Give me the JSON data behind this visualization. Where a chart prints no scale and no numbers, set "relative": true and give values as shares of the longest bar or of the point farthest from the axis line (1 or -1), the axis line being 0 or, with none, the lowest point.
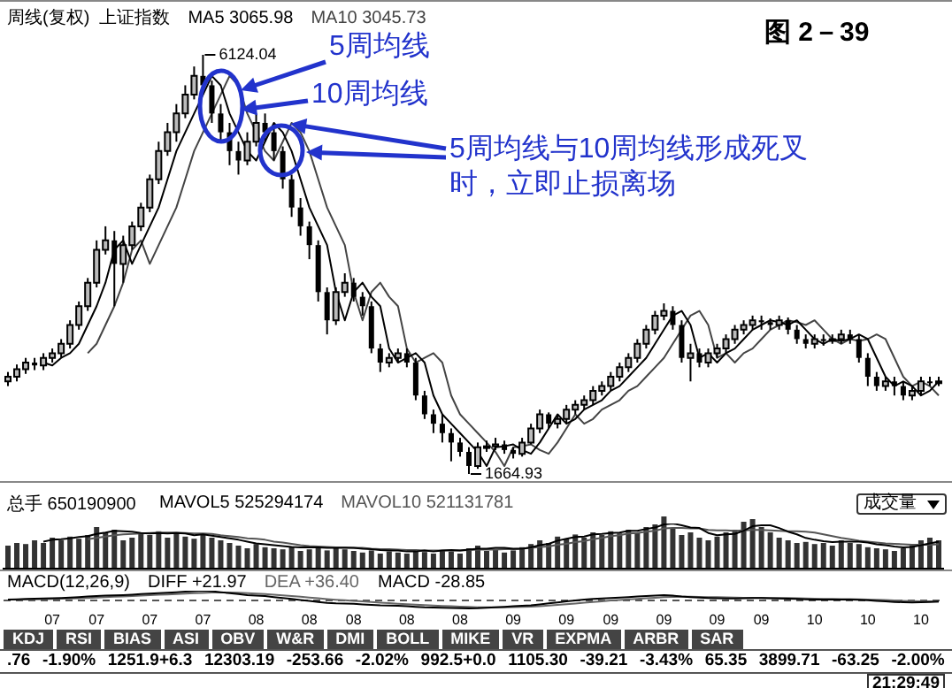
{
  "chart_data": [
    {
      "type": "candlestick",
      "title": "周线(复权)  上证指数",
      "tick_labels": false,
      "categories": [
        null,
        null,
        null,
        null,
        null,
        "07",
        null,
        null,
        null,
        null,
        "07",
        null,
        null,
        null,
        null,
        null,
        "07",
        null,
        null,
        null,
        null,
        null,
        "07",
        null,
        null,
        null,
        null,
        null,
        "08",
        null,
        null,
        null,
        null,
        null,
        "08",
        null,
        null,
        null,
        null,
        "08",
        null,
        null,
        null,
        null,
        null,
        "08",
        null,
        null,
        null,
        null,
        null,
        "08",
        null,
        null,
        null,
        null,
        null,
        "09",
        null,
        null,
        null,
        null,
        null,
        "09",
        null,
        null,
        null,
        null,
        "09",
        null,
        null,
        null,
        null,
        null,
        "09",
        null,
        null,
        null,
        null,
        null,
        "09",
        null,
        null,
        null,
        null,
        "09",
        null,
        null,
        null,
        null,
        null,
        "10",
        null,
        null,
        null,
        null,
        null,
        "10",
        null,
        null,
        null,
        null,
        null,
        "10",
        null,
        null
      ],
      "ohlc": [
        [
          2650,
          2750,
          2600,
          2700
        ],
        [
          2700,
          2830,
          2650,
          2780
        ],
        [
          2780,
          2900,
          2730,
          2850
        ],
        [
          2850,
          2900,
          2770,
          2820
        ],
        [
          2820,
          2950,
          2770,
          2900
        ],
        [
          2900,
          3000,
          2850,
          2950
        ],
        [
          2950,
          3100,
          2900,
          3050
        ],
        [
          3050,
          3300,
          3000,
          3250
        ],
        [
          3250,
          3500,
          3200,
          3450
        ],
        [
          3450,
          3750,
          3400,
          3700
        ],
        [
          3700,
          4150,
          3650,
          4050
        ],
        [
          4050,
          4300,
          4000,
          4150
        ],
        [
          4150,
          4250,
          3450,
          3900
        ],
        [
          3900,
          4200,
          3700,
          4100
        ],
        [
          4100,
          4350,
          4050,
          4300
        ],
        [
          4300,
          4550,
          4250,
          4500
        ],
        [
          4500,
          4850,
          4450,
          4800
        ],
        [
          4800,
          5200,
          4750,
          5100
        ],
        [
          5100,
          5400,
          5050,
          5300
        ],
        [
          5300,
          5600,
          5200,
          5500
        ],
        [
          5500,
          5800,
          5450,
          5700
        ],
        [
          5700,
          6000,
          5650,
          5900
        ],
        [
          5900,
          6124.04,
          5700,
          5800
        ],
        [
          5800,
          5850,
          5400,
          5500
        ],
        [
          5500,
          5600,
          5200,
          5300
        ],
        [
          5300,
          5400,
          4950,
          5100
        ],
        [
          5100,
          5200,
          4850,
          5000
        ],
        [
          5000,
          5300,
          4950,
          5200
        ],
        [
          5200,
          5500,
          5150,
          5400
        ],
        [
          5400,
          5500,
          5200,
          5300
        ],
        [
          5300,
          5350,
          5000,
          5100
        ],
        [
          5100,
          5150,
          4700,
          4800
        ],
        [
          4800,
          4850,
          4400,
          4500
        ],
        [
          4500,
          4600,
          4200,
          4300
        ],
        [
          4300,
          4350,
          3950,
          4100
        ],
        [
          4100,
          4150,
          3500,
          3600
        ],
        [
          3600,
          3650,
          3150,
          3300
        ],
        [
          3300,
          3650,
          3250,
          3600
        ],
        [
          3600,
          3800,
          3550,
          3700
        ],
        [
          3700,
          3750,
          3500,
          3550
        ],
        [
          3550,
          3600,
          3350,
          3450
        ],
        [
          3450,
          3500,
          2950,
          3000
        ],
        [
          3000,
          3050,
          2750,
          2850
        ],
        [
          2850,
          2950,
          2800,
          2900
        ],
        [
          2900,
          3000,
          2850,
          2950
        ],
        [
          2950,
          3000,
          2800,
          2850
        ],
        [
          2850,
          2900,
          2450,
          2500
        ],
        [
          2500,
          2550,
          2250,
          2300
        ],
        [
          2300,
          2350,
          2100,
          2200
        ],
        [
          2200,
          2300,
          2000,
          2100
        ],
        [
          2100,
          2150,
          1800,
          2000
        ],
        [
          2000,
          2050,
          1850,
          1900
        ],
        [
          1900,
          1950,
          1664.93,
          1750
        ],
        [
          1750,
          2000,
          1720,
          1950
        ],
        [
          1950,
          2020,
          1900,
          1960
        ],
        [
          1960,
          2050,
          1920,
          1980
        ],
        [
          1980,
          2020,
          1880,
          1920
        ],
        [
          1920,
          1950,
          1830,
          1880
        ],
        [
          1880,
          2050,
          1850,
          2000
        ],
        [
          2000,
          2200,
          1980,
          2150
        ],
        [
          2150,
          2350,
          2100,
          2300
        ],
        [
          2300,
          2320,
          2150,
          2200
        ],
        [
          2200,
          2300,
          2150,
          2250
        ],
        [
          2250,
          2400,
          2200,
          2350
        ],
        [
          2350,
          2450,
          2300,
          2400
        ],
        [
          2400,
          2500,
          2350,
          2450
        ],
        [
          2450,
          2600,
          2400,
          2550
        ],
        [
          2550,
          2650,
          2500,
          2600
        ],
        [
          2600,
          2750,
          2550,
          2700
        ],
        [
          2700,
          2850,
          2650,
          2800
        ],
        [
          2800,
          2950,
          2750,
          2900
        ],
        [
          2900,
          3100,
          2850,
          3050
        ],
        [
          3050,
          3250,
          3000,
          3200
        ],
        [
          3200,
          3400,
          3150,
          3350
        ],
        [
          3350,
          3480,
          3300,
          3400
        ],
        [
          3400,
          3450,
          3200,
          3250
        ],
        [
          3250,
          3300,
          2850,
          2900
        ],
        [
          2900,
          3050,
          2650,
          2950
        ],
        [
          2950,
          3000,
          2800,
          2850
        ],
        [
          2850,
          3000,
          2800,
          2950
        ],
        [
          2950,
          3050,
          2900,
          3000
        ],
        [
          3000,
          3150,
          2950,
          3100
        ],
        [
          3100,
          3250,
          3050,
          3200
        ],
        [
          3200,
          3300,
          3150,
          3250
        ],
        [
          3250,
          3350,
          3200,
          3300
        ],
        [
          3300,
          3350,
          3200,
          3280
        ],
        [
          3280,
          3320,
          3200,
          3250
        ],
        [
          3250,
          3350,
          3200,
          3300
        ],
        [
          3300,
          3330,
          3150,
          3200
        ],
        [
          3200,
          3250,
          3050,
          3100
        ],
        [
          3100,
          3150,
          3000,
          3050
        ],
        [
          3050,
          3150,
          3000,
          3100
        ],
        [
          3100,
          3150,
          3030,
          3080
        ],
        [
          3080,
          3150,
          3050,
          3100
        ],
        [
          3100,
          3200,
          3050,
          3150
        ],
        [
          3150,
          3200,
          3050,
          3100
        ],
        [
          3100,
          3150,
          2850,
          2900
        ],
        [
          2900,
          2950,
          2600,
          2700
        ],
        [
          2700,
          2750,
          2550,
          2600
        ],
        [
          2600,
          2700,
          2550,
          2650
        ],
        [
          2650,
          2700,
          2500,
          2600
        ],
        [
          2600,
          2650,
          2450,
          2500
        ],
        [
          2500,
          2600,
          2450,
          2550
        ],
        [
          2550,
          2700,
          2500,
          2650
        ],
        [
          2650,
          2700,
          2600,
          2640
        ],
        [
          2640,
          2700,
          2600,
          2650
        ]
      ],
      "series": [
        {
          "name": "MA5 3065.98",
          "type": "line",
          "color": "#000000",
          "values": [
            null,
            null,
            null,
            null,
            2850,
            2820,
            2900,
            2950,
            3050,
            3250,
            3450,
            3700,
            4050,
            4150,
            3900,
            4100,
            4300,
            4500,
            4800,
            5100,
            5300,
            5500,
            5700,
            5900,
            5800,
            5500,
            5300,
            5100,
            5000,
            5200,
            5400,
            5300,
            5100,
            4800,
            4500,
            4300,
            4100,
            3600,
            3300,
            3600,
            3700,
            3550,
            3450,
            3000,
            2850,
            2900,
            2950,
            2850,
            2500,
            2300,
            2200,
            2100,
            2000,
            1900,
            1750,
            1950,
            1960,
            1980,
            1920,
            1880,
            2000,
            2150,
            2300,
            2200,
            2250,
            2350,
            2400,
            2450,
            2550,
            2600,
            2700,
            2800,
            2900,
            3050,
            3200,
            3350,
            3400,
            3250,
            2900,
            2950,
            2850,
            2950,
            3000,
            3100,
            3200,
            3250,
            3300,
            3280,
            3250,
            3300,
            3200,
            3100,
            3050,
            3100,
            3080,
            3100,
            3150,
            3100,
            2900,
            2700,
            2600,
            2650,
            2600,
            2500,
            2550,
            2650
          ]
        },
        {
          "name": "MA10 3045.73",
          "type": "line",
          "color": "#444444",
          "values": [
            null,
            null,
            null,
            null,
            null,
            null,
            null,
            null,
            null,
            2950,
            3050,
            3250,
            3450,
            3700,
            4050,
            4150,
            3900,
            4100,
            4300,
            4500,
            4800,
            5100,
            5300,
            5500,
            5700,
            5900,
            5800,
            5500,
            5300,
            5100,
            5000,
            5200,
            5400,
            5300,
            5100,
            4800,
            4500,
            4300,
            4100,
            3600,
            3300,
            3600,
            3700,
            3550,
            3450,
            3000,
            2850,
            2900,
            2950,
            2850,
            2500,
            2300,
            2200,
            2100,
            2000,
            1900,
            1750,
            1950,
            1960,
            1980,
            1920,
            1880,
            2000,
            2150,
            2300,
            2200,
            2250,
            2350,
            2400,
            2450,
            2550,
            2600,
            2700,
            2800,
            2900,
            3050,
            3200,
            3350,
            3400,
            3250,
            2900,
            2950,
            2850,
            2950,
            3000,
            3100,
            3200,
            3250,
            3300,
            3280,
            3250,
            3300,
            3200,
            3100,
            3050,
            3100,
            3080,
            3100,
            3150,
            3100,
            2900,
            2700,
            2600,
            2650,
            2600,
            2500
          ]
        }
      ],
      "annotations": [
        "图 2－39",
        "6124.04",
        "1664.93",
        "5周均线",
        "10周均线",
        "5周均线与10周均线形成死叉时，立即止损离场"
      ]
    },
    {
      "type": "bar",
      "title": "总手 650190900",
      "relative": true,
      "tick_labels": false,
      "categories": [
        null,
        null,
        null,
        null,
        null,
        "07",
        null,
        null,
        null,
        null,
        "07",
        null,
        null,
        null,
        null,
        null,
        "07",
        null,
        null,
        null,
        null,
        null,
        "07",
        null,
        null,
        null,
        null,
        null,
        "08",
        null,
        null,
        null,
        null,
        null,
        "08",
        null,
        null,
        null,
        null,
        "08",
        null,
        null,
        null,
        null,
        null,
        "08",
        null,
        null,
        null,
        null,
        null,
        "08",
        null,
        null,
        null,
        null,
        null,
        "09",
        null,
        null,
        null,
        null,
        null,
        "09",
        null,
        null,
        null,
        null,
        "09",
        null,
        null,
        null,
        null,
        null,
        "09",
        null,
        null,
        null,
        null,
        null,
        "09",
        null,
        null,
        null,
        null,
        "09",
        null,
        null,
        null,
        null,
        null,
        "10",
        null,
        null,
        null,
        null,
        null,
        "10",
        null,
        null,
        null,
        null,
        null,
        "10",
        null,
        null
      ],
      "series": [
        {
          "type": "bar",
          "color": "#333333",
          "values": [
            0.45,
            0.5,
            0.48,
            0.55,
            0.5,
            0.6,
            0.55,
            0.62,
            0.58,
            0.65,
            0.8,
            0.7,
            0.75,
            0.55,
            0.6,
            0.7,
            0.65,
            0.72,
            0.6,
            0.68,
            0.62,
            0.58,
            0.66,
            0.6,
            0.55,
            0.5,
            0.45,
            0.4,
            0.48,
            0.42,
            0.4,
            0.38,
            0.42,
            0.35,
            0.38,
            0.4,
            0.36,
            0.42,
            0.38,
            0.35,
            0.32,
            0.36,
            0.3,
            0.34,
            0.32,
            0.3,
            0.35,
            0.33,
            0.3,
            0.36,
            0.34,
            0.3,
            0.4,
            0.45,
            0.35,
            0.38,
            0.32,
            0.36,
            0.42,
            0.48,
            0.55,
            0.5,
            0.62,
            0.58,
            0.66,
            0.6,
            0.7,
            0.65,
            0.72,
            0.68,
            0.75,
            0.7,
            0.8,
            0.85,
            1,
            0.78,
            0.65,
            0.7,
            0.6,
            0.55,
            0.62,
            0.7,
            0.75,
            0.9,
            0.95,
            0.8,
            0.7,
            0.6,
            0.55,
            0.5,
            0.52,
            0.48,
            0.5,
            0.45,
            0.55,
            0.5,
            0.48,
            0.42,
            0.4,
            0.38,
            0.35,
            0.4,
            0.45,
            0.55,
            0.6,
            0.55
          ]
        }
      ],
      "annotations": [
        "成交量"
      ]
    },
    {
      "type": "line",
      "relative": true,
      "tick_labels": false,
      "categories": [
        null,
        null,
        null,
        null,
        null,
        "07",
        null,
        null,
        null,
        null,
        "07",
        null,
        null,
        null,
        null,
        null,
        "07",
        null,
        null,
        null,
        null,
        null,
        "07",
        null,
        null,
        null,
        null,
        null,
        "08",
        null,
        null,
        null,
        null,
        null,
        "08",
        null,
        null,
        null,
        null,
        "08",
        null,
        null,
        null,
        null,
        null,
        "08",
        null,
        null,
        null,
        null,
        null,
        "08",
        null,
        null,
        null,
        null,
        null,
        "09",
        null,
        null,
        null,
        null,
        null,
        "09",
        null,
        null,
        null,
        null,
        "09",
        null,
        null,
        null,
        null,
        null,
        "09",
        null,
        null,
        null,
        null,
        null,
        "09",
        null,
        null,
        null,
        null,
        "09",
        null,
        null,
        null,
        null,
        null,
        "10",
        null,
        null,
        null,
        null,
        null,
        "10",
        null,
        null,
        null,
        null,
        null,
        "10",
        null,
        null
      ],
      "series": [
        {
          "name": "MAVOL5 525294174",
          "type": "line",
          "color": "#000000",
          "values": [
            null,
            null,
            null,
            null,
            0.6,
            0.64,
            0.65,
            0.67,
            0.7,
            0.72,
            0.77,
            0.8,
            0.84,
            0.83,
            0.82,
            0.79,
            0.78,
            0.79,
            0.78,
            0.79,
            0.78,
            0.74,
            0.76,
            0.73,
            0.7,
            0.67,
            0.64,
            0.6,
            0.56,
            0.54,
            0.52,
            0.5,
            0.48,
            0.47,
            0.47,
            0.47,
            0.46,
            0.46,
            0.46,
            0.46,
            0.44,
            0.43,
            0.41,
            0.4,
            0.4,
            0.38,
            0.38,
            0.4,
            0.38,
            0.4,
            0.41,
            0.4,
            0.42,
            0.44,
            0.44,
            0.46,
            0.46,
            0.44,
            0.44,
            0.47,
            0.52,
            0.55,
            0.62,
            0.66,
            0.7,
            0.71,
            0.76,
            0.77,
            0.79,
            0.8,
            0.84,
            0.84,
            0.88,
            0.91,
            0.98,
            1,
            0.96,
            0.91,
            0.9,
            0.79,
            0.74,
            0.76,
            0.77,
            0.84,
            0.94,
            0.96,
            0.96,
            0.9,
            0.82,
            0.76,
            0.68,
            0.64,
            0.61,
            0.59,
            0.6,
            0.6,
            0.6,
            0.58,
            0.54,
            0.52,
            0.49,
            0.47,
            0.48,
            0.52,
            0.56,
            0.6
          ]
        },
        {
          "name": "MAVOL10 521131781",
          "type": "line",
          "color": "#555555",
          "values": [
            null,
            null,
            null,
            null,
            null,
            null,
            null,
            null,
            null,
            0.65,
            0.68,
            0.71,
            0.74,
            0.76,
            0.77,
            0.78,
            0.79,
            0.8,
            0.8,
            0.8,
            0.79,
            0.78,
            0.78,
            0.77,
            0.74,
            0.72,
            0.7,
            0.67,
            0.66,
            0.64,
            0.6,
            0.58,
            0.55,
            0.52,
            0.5,
            0.49,
            0.48,
            0.47,
            0.47,
            0.46,
            0.46,
            0.44,
            0.43,
            0.43,
            0.42,
            0.41,
            0.41,
            0.4,
            0.4,
            0.4,
            0.4,
            0.4,
            0.41,
            0.42,
            0.42,
            0.42,
            0.43,
            0.43,
            0.44,
            0.46,
            0.48,
            0.49,
            0.53,
            0.55,
            0.59,
            0.61,
            0.65,
            0.68,
            0.72,
            0.74,
            0.78,
            0.79,
            0.82,
            0.84,
            0.89,
            0.9,
            0.9,
            0.89,
            0.89,
            0.86,
            0.85,
            0.85,
            0.84,
            0.85,
            0.86,
            0.86,
            0.85,
            0.84,
            0.83,
            0.83,
            0.82,
            0.8,
            0.76,
            0.72,
            0.68,
            0.65,
            0.62,
            0.6,
            0.58,
            0.56,
            0.55,
            0.54,
            0.53,
            0.53,
            0.53,
            0.54
          ]
        }
      ]
    },
    {
      "type": "line",
      "title": "MACD(12,26,9)",
      "relative": true,
      "tick_labels": "x",
      "categories": [
        null,
        null,
        null,
        null,
        null,
        "07",
        null,
        null,
        null,
        null,
        "07",
        null,
        null,
        null,
        null,
        null,
        "07",
        null,
        null,
        null,
        null,
        null,
        "07",
        null,
        null,
        null,
        null,
        null,
        "08",
        null,
        null,
        null,
        null,
        null,
        "08",
        null,
        null,
        null,
        null,
        "08",
        null,
        null,
        null,
        null,
        null,
        "08",
        null,
        null,
        null,
        null,
        null,
        "08",
        null,
        null,
        null,
        null,
        null,
        "09",
        null,
        null,
        null,
        null,
        null,
        "09",
        null,
        null,
        null,
        null,
        "09",
        null,
        null,
        null,
        null,
        null,
        "09",
        null,
        null,
        null,
        null,
        null,
        "09",
        null,
        null,
        null,
        null,
        "09",
        null,
        null,
        null,
        null,
        null,
        "10",
        null,
        null,
        null,
        null,
        null,
        "10",
        null,
        null,
        null,
        null,
        null,
        "10",
        null,
        null
      ],
      "series": [
        {
          "name": "DIFF +21.97",
          "type": "line",
          "color": "#000000",
          "values": [
            0.1,
            0.12,
            0.15,
            0.18,
            0.2,
            0.22,
            0.25,
            0.3,
            0.35,
            0.4,
            0.45,
            0.5,
            0.52,
            0.55,
            0.6,
            0.65,
            0.7,
            0.75,
            0.8,
            0.85,
            0.9,
            0.95,
            1,
            0.95,
            0.85,
            0.75,
            0.65,
            0.55,
            0.5,
            0.45,
            0.35,
            0.25,
            0.15,
            0.05,
            -0.05,
            -0.15,
            -0.25,
            -0.3,
            -0.32,
            -0.35,
            -0.4,
            -0.45,
            -0.5,
            -0.52,
            -0.55,
            -0.6,
            -0.65,
            -0.7,
            -0.72,
            -0.75,
            -0.78,
            -0.8,
            -0.82,
            -0.8,
            -0.75,
            -0.7,
            -0.65,
            -0.6,
            -0.55,
            -0.5,
            -0.4,
            -0.3,
            -0.2,
            -0.1,
            0,
            0.1,
            0.15,
            0.2,
            0.25,
            0.3,
            0.35,
            0.4,
            0.45,
            0.5,
            0.55,
            0.5,
            0.4,
            0.35,
            0.3,
            0.25,
            0.22,
            0.2,
            0.2,
            0.22,
            0.25,
            0.25,
            0.22,
            0.2,
            0.18,
            0.15,
            0.12,
            0.1,
            0.08,
            0.08,
            0.08,
            0.08,
            0.06,
            0.02,
            -0.05,
            -0.1,
            -0.15,
            -0.18,
            -0.2,
            -0.18,
            -0.15,
            -0.12
          ]
        },
        {
          "name": "DEA +36.40",
          "type": "line",
          "color": "#666666",
          "values": [
            0.08,
            0.09,
            0.1,
            0.12,
            0.14,
            0.16,
            0.18,
            0.2,
            0.23,
            0.26,
            0.3,
            0.34,
            0.38,
            0.42,
            0.46,
            0.5,
            0.54,
            0.58,
            0.62,
            0.66,
            0.7,
            0.74,
            0.78,
            0.81,
            0.82,
            0.81,
            0.79,
            0.75,
            0.7,
            0.65,
            0.6,
            0.53,
            0.46,
            0.38,
            0.3,
            0.22,
            0.14,
            0.07,
            0.02,
            -0.04,
            -0.1,
            -0.16,
            -0.22,
            -0.28,
            -0.33,
            -0.38,
            -0.43,
            -0.48,
            -0.52,
            -0.56,
            -0.6,
            -0.64,
            -0.67,
            -0.7,
            -0.71,
            -0.71,
            -0.7,
            -0.68,
            -0.66,
            -0.63,
            -0.58,
            -0.53,
            -0.46,
            -0.39,
            -0.31,
            -0.23,
            -0.15,
            -0.08,
            -0.01,
            0.05,
            0.11,
            0.17,
            0.22,
            0.28,
            0.33,
            0.37,
            0.38,
            0.38,
            0.37,
            0.35,
            0.33,
            0.31,
            0.29,
            0.28,
            0.27,
            0.27,
            0.26,
            0.25,
            0.24,
            0.22,
            0.2,
            0.18,
            0.16,
            0.15,
            0.14,
            0.13,
            0.12,
            0.1,
            0.07,
            0.04,
            0,
            -0.04,
            -0.07,
            -0.09,
            -0.1,
            -0.11
          ]
        }
      ],
      "ref_lines": [
        {
          "axis": "y",
          "value": 0,
          "line_style": "dashed",
          "color": "#555555"
        }
      ],
      "annotations": [
        "MACD -28.85"
      ]
    },
    {
      "type": "other",
      "categories": [
        "KDJ",
        "RSI",
        "BIAS",
        "ASI",
        "OBV",
        "W&R",
        "DMI",
        "BOLL",
        "MIKE",
        "VR",
        "EXPMA",
        "ARBR",
        "SAR"
      ],
      "annotations": [
        ".76",
        "-1.90%",
        "1251.9+6.3",
        "12303.19",
        "-253.66",
        "-2.02%",
        "992.5+0.0",
        "1105.30",
        "-39.21",
        "-3.43%",
        "65.35",
        "3899.71",
        "-63.25",
        "-2.00%",
        "21:29:49"
      ]
    }
  ]
}
